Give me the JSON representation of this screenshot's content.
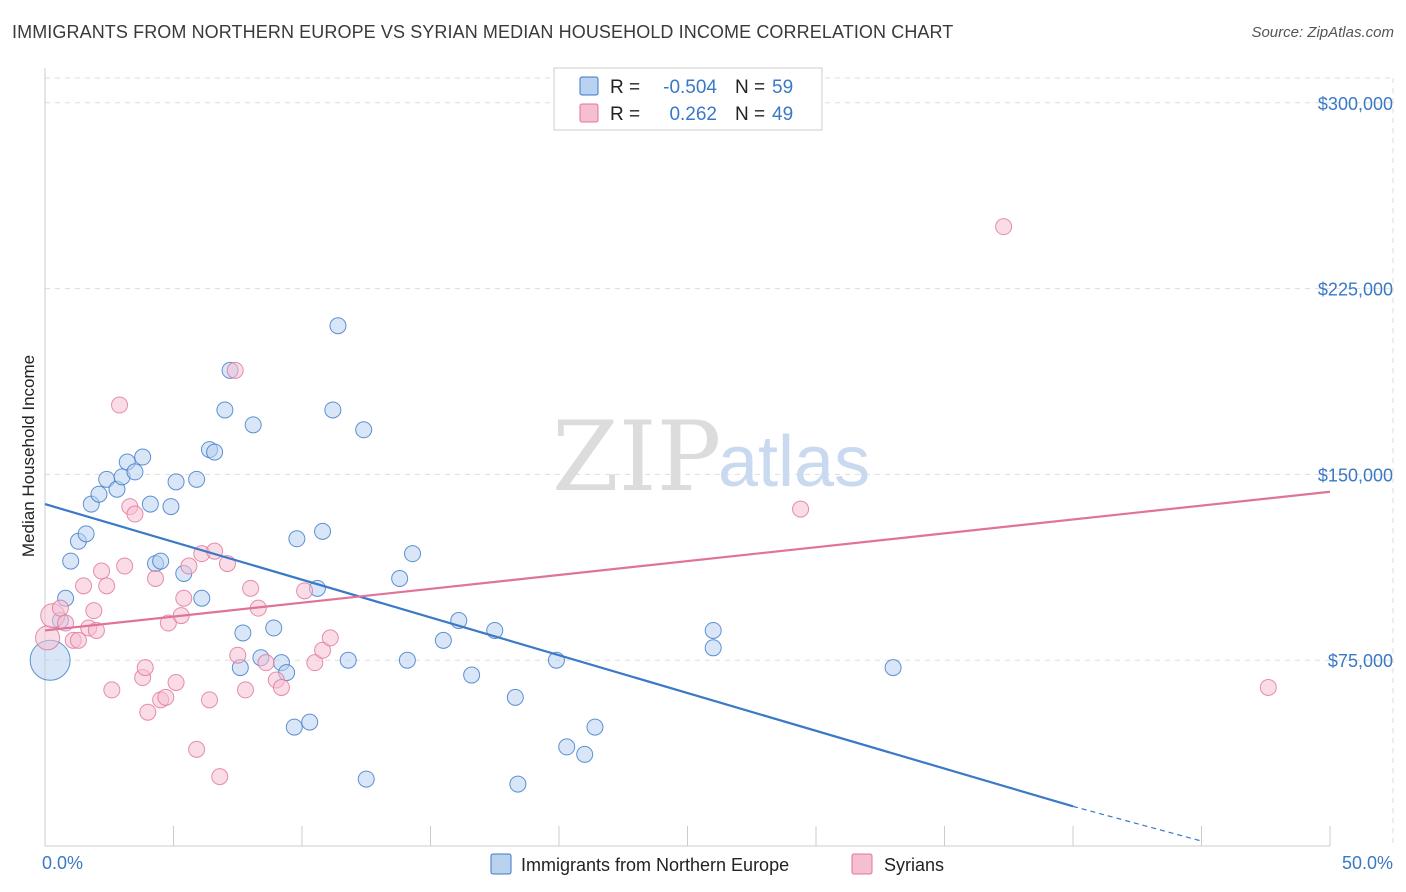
{
  "title": "IMMIGRANTS FROM NORTHERN EUROPE VS SYRIAN MEDIAN HOUSEHOLD INCOME CORRELATION CHART",
  "source": "Source: ZipAtlas.com",
  "watermark": {
    "part1": "ZIP",
    "part2": "atlas"
  },
  "colors": {
    "blue": "#3a78c8",
    "blue_fill": "#b8d2f0",
    "pink": "#e0739a",
    "pink_fill": "#f5bfd1",
    "grid": "#dddddd"
  },
  "legend": {
    "rows": [
      {
        "r_label": "R =",
        "r_value": "-0.504",
        "n_label": "N =",
        "n_value": "59"
      },
      {
        "r_label": "R =",
        "r_value": "0.262",
        "n_label": "N =",
        "n_value": "49"
      }
    ]
  },
  "chart_data": {
    "type": "scatter",
    "title": "IMMIGRANTS FROM NORTHERN EUROPE VS SYRIAN MEDIAN HOUSEHOLD INCOME CORRELATION CHART",
    "xlabel": "",
    "ylabel": "Median Household Income",
    "xlim": [
      0,
      50
    ],
    "ylim": [
      0,
      310000
    ],
    "x_tick_labels": [
      "0.0%",
      "50.0%"
    ],
    "y_ticks": [
      75000,
      150000,
      225000,
      300000
    ],
    "y_tick_labels": [
      "$75,000",
      "$150,000",
      "$225,000",
      "$300,000"
    ],
    "grid": true,
    "series": [
      {
        "name": "Immigrants from Northern Europe",
        "color": "blue",
        "R": -0.504,
        "N": 59,
        "trend": {
          "x": [
            0,
            40
          ],
          "y": [
            138000,
            16000
          ],
          "dash_x": [
            40,
            45
          ],
          "dash_y": [
            16000,
            2000
          ]
        },
        "points": [
          [
            0.2,
            75000,
            20
          ],
          [
            0.6,
            91000,
            8
          ],
          [
            0.8,
            100000,
            8
          ],
          [
            1.0,
            115000,
            8
          ],
          [
            1.3,
            123000,
            8
          ],
          [
            1.6,
            126000,
            8
          ],
          [
            1.8,
            138000,
            8
          ],
          [
            2.1,
            142000,
            8
          ],
          [
            2.4,
            148000,
            8
          ],
          [
            2.8,
            144000,
            8
          ],
          [
            3.0,
            149000,
            8
          ],
          [
            3.2,
            155000,
            8
          ],
          [
            3.5,
            151000,
            8
          ],
          [
            3.8,
            157000,
            8
          ],
          [
            4.1,
            138000,
            8
          ],
          [
            4.3,
            114000,
            8
          ],
          [
            4.5,
            115000,
            8
          ],
          [
            4.9,
            137000,
            8
          ],
          [
            5.1,
            147000,
            8
          ],
          [
            5.4,
            110000,
            8
          ],
          [
            5.9,
            148000,
            8
          ],
          [
            6.1,
            100000,
            8
          ],
          [
            6.4,
            160000,
            8
          ],
          [
            6.6,
            159000,
            8
          ],
          [
            7.0,
            176000,
            8
          ],
          [
            7.2,
            192000,
            8
          ],
          [
            7.6,
            72000,
            8
          ],
          [
            7.7,
            86000,
            8
          ],
          [
            8.1,
            170000,
            8
          ],
          [
            8.4,
            76000,
            8
          ],
          [
            8.9,
            88000,
            8
          ],
          [
            9.2,
            74000,
            8
          ],
          [
            9.4,
            70000,
            8
          ],
          [
            9.7,
            48000,
            8
          ],
          [
            9.8,
            124000,
            8
          ],
          [
            10.3,
            50000,
            8
          ],
          [
            10.6,
            104000,
            8
          ],
          [
            10.8,
            127000,
            8
          ],
          [
            11.2,
            176000,
            8
          ],
          [
            11.4,
            210000,
            8
          ],
          [
            11.8,
            75000,
            8
          ],
          [
            12.4,
            168000,
            8
          ],
          [
            12.5,
            27000,
            8
          ],
          [
            13.8,
            108000,
            8
          ],
          [
            14.1,
            75000,
            8
          ],
          [
            14.3,
            118000,
            8
          ],
          [
            15.5,
            83000,
            8
          ],
          [
            16.1,
            91000,
            8
          ],
          [
            16.6,
            69000,
            8
          ],
          [
            17.5,
            87000,
            8
          ],
          [
            18.3,
            60000,
            8
          ],
          [
            18.4,
            25000,
            8
          ],
          [
            19.9,
            75000,
            8
          ],
          [
            20.3,
            40000,
            8
          ],
          [
            21.0,
            37000,
            8
          ],
          [
            21.4,
            48000,
            8
          ],
          [
            26.0,
            87000,
            8
          ],
          [
            26.0,
            80000,
            8
          ],
          [
            33.0,
            72000,
            8
          ]
        ]
      },
      {
        "name": "Syrians",
        "color": "pink",
        "R": 0.262,
        "N": 49,
        "trend": {
          "x": [
            0,
            50
          ],
          "y": [
            87000,
            143000
          ]
        },
        "points": [
          [
            0.1,
            84000,
            12
          ],
          [
            0.3,
            93000,
            12
          ],
          [
            0.6,
            96000,
            8
          ],
          [
            0.8,
            90000,
            8
          ],
          [
            1.1,
            83000,
            8
          ],
          [
            1.3,
            83000,
            8
          ],
          [
            1.5,
            105000,
            8
          ],
          [
            1.7,
            88000,
            8
          ],
          [
            1.9,
            95000,
            8
          ],
          [
            2.0,
            87000,
            8
          ],
          [
            2.2,
            111000,
            8
          ],
          [
            2.4,
            105000,
            8
          ],
          [
            2.6,
            63000,
            8
          ],
          [
            2.9,
            178000,
            8
          ],
          [
            3.1,
            113000,
            8
          ],
          [
            3.3,
            137000,
            8
          ],
          [
            3.5,
            134000,
            8
          ],
          [
            3.8,
            68000,
            8
          ],
          [
            3.9,
            72000,
            8
          ],
          [
            4.0,
            54000,
            8
          ],
          [
            4.3,
            108000,
            8
          ],
          [
            4.5,
            59000,
            8
          ],
          [
            4.7,
            60000,
            8
          ],
          [
            4.8,
            90000,
            8
          ],
          [
            5.1,
            66000,
            8
          ],
          [
            5.3,
            93000,
            8
          ],
          [
            5.4,
            100000,
            8
          ],
          [
            5.6,
            113000,
            8
          ],
          [
            5.9,
            39000,
            8
          ],
          [
            6.1,
            118000,
            8
          ],
          [
            6.4,
            59000,
            8
          ],
          [
            6.6,
            119000,
            8
          ],
          [
            6.8,
            28000,
            8
          ],
          [
            7.1,
            114000,
            8
          ],
          [
            7.4,
            192000,
            8
          ],
          [
            7.5,
            77000,
            8
          ],
          [
            7.8,
            63000,
            8
          ],
          [
            8.0,
            104000,
            8
          ],
          [
            8.3,
            96000,
            8
          ],
          [
            8.6,
            74000,
            8
          ],
          [
            9.0,
            67000,
            8
          ],
          [
            9.2,
            64000,
            8
          ],
          [
            10.1,
            103000,
            8
          ],
          [
            10.5,
            74000,
            8
          ],
          [
            10.8,
            79000,
            8
          ],
          [
            11.1,
            84000,
            8
          ],
          [
            29.4,
            136000,
            8
          ],
          [
            37.3,
            250000,
            8
          ],
          [
            47.6,
            64000,
            8
          ]
        ]
      }
    ]
  },
  "bottom_legend": [
    {
      "label": "Immigrants from Northern Europe",
      "color": "blue"
    },
    {
      "label": "Syrians",
      "color": "pink"
    }
  ]
}
